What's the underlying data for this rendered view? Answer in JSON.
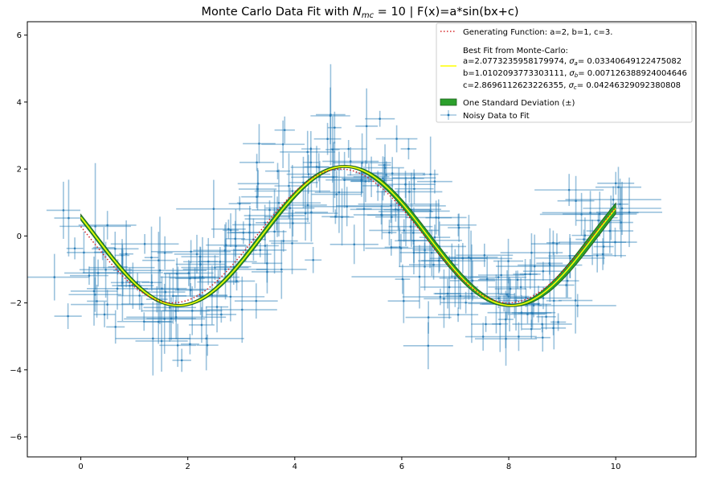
{
  "chart_data": {
    "type": "scatter",
    "title": "Monte Carlo Data Fit with N_mc = 10 | F(x)=a*sin(bx+c)",
    "title_parts": {
      "prefix": "Monte Carlo Data Fit with ",
      "symbol": "N",
      "subscript": "mc",
      "suffix": " = 10 | F(x)=a*sin(bx+c)"
    },
    "xlabel": "",
    "ylabel": "",
    "xlim": [
      -1,
      11.5
    ],
    "ylim": [
      -6.6,
      6.4
    ],
    "xticks": [
      0,
      2,
      4,
      6,
      8,
      10
    ],
    "yticks": [
      -6,
      -4,
      -2,
      0,
      2,
      4,
      6
    ],
    "grid": false,
    "legend_position": "top-right",
    "generating": {
      "a": 2,
      "b": 1,
      "c": 3,
      "x_range": [
        0,
        10
      ]
    },
    "best_fit": {
      "a": 2.0773235958179974,
      "b": 1.0102093773303111,
      "c": 2.8696112623226355,
      "sigma_a": 0.03340649122475082,
      "sigma_b": 0.007126388924004646,
      "sigma_c": 0.04246329092380808,
      "x_range": [
        0,
        10
      ]
    },
    "noisy_data": {
      "n_points": 300,
      "x_range": [
        0,
        10
      ],
      "x_noise_sd": 0.35,
      "y_noise_sd": 0.9,
      "seed": 7
    },
    "legend": {
      "generating": "Generating Function: a=2, b=1, c=3.",
      "best_fit_header": "Best Fit from Monte-Carlo:",
      "best_fit_a": "a=2.0773235958179974, ",
      "best_fit_a_sigma": "= 0.03340649122475082",
      "best_fit_b": "b=1.0102093773303111, ",
      "best_fit_b_sigma": "= 0.007126388924004646",
      "best_fit_c": "c=2.8696112623226355, ",
      "best_fit_c_sigma": "= 0.04246329092380808",
      "sigma_a_sym": "a",
      "sigma_b_sym": "b",
      "sigma_c_sym": "c",
      "std_dev": "One Standard Deviation (±)",
      "noisy": "Noisy Data to Fit"
    },
    "colors": {
      "generating": "#d62728",
      "best_fit": "#ffff00",
      "band": "#2ca02c",
      "band_edge": "#1f5f1f",
      "data": "#1f77b4",
      "axes": "#000000"
    }
  }
}
